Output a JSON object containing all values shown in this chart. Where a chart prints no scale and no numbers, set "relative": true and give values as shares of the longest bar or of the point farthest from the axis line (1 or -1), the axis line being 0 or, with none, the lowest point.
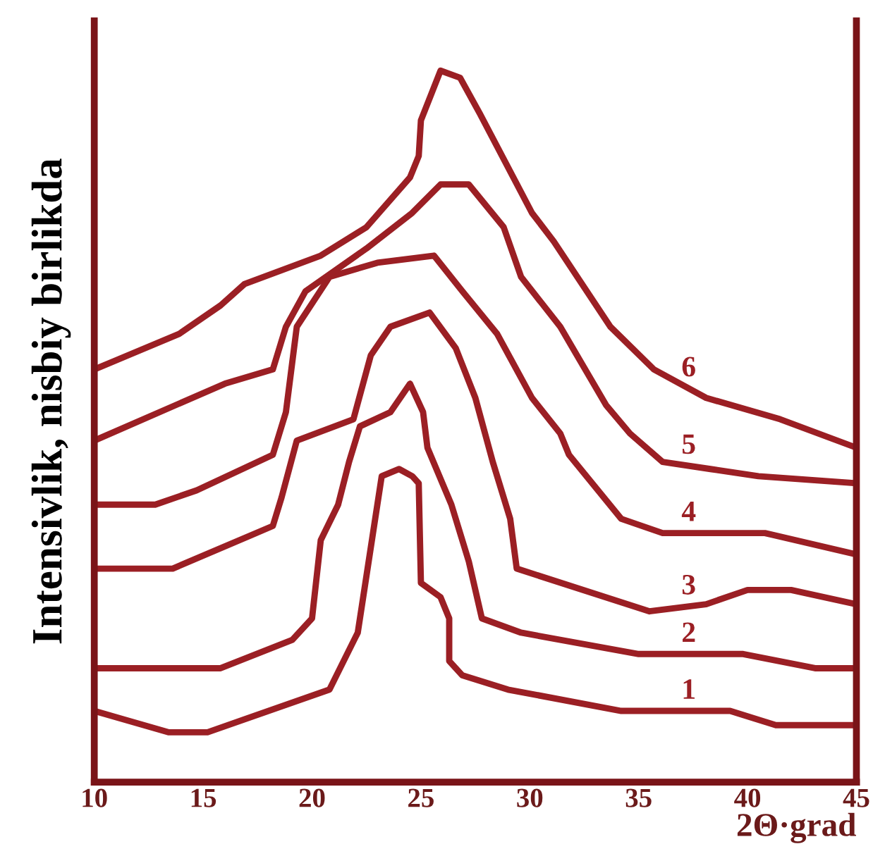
{
  "chart_data": {
    "type": "line",
    "relative": true,
    "xlabel": "2Θ·grad",
    "ylabel": "Intensivlik, nisbiy birlikda",
    "xlim": [
      10,
      45
    ],
    "xticks": [
      10,
      15,
      20,
      25,
      30,
      35,
      40,
      45
    ],
    "grid": false,
    "legend": false,
    "marker": "none",
    "line_style": "solid",
    "series": [
      {
        "name": "1",
        "color": "#9b1f24",
        "x": [
          10,
          13.4,
          15.2,
          20.8,
          22.1,
          22.6,
          23.2,
          24.0,
          24.6,
          24.9,
          25.0,
          25.9,
          26.3,
          26.3,
          26.9,
          29.0,
          34.2,
          39.2,
          41.3,
          45
        ],
        "values": [
          0.1,
          0.07,
          0.07,
          0.13,
          0.21,
          0.31,
          0.43,
          0.44,
          0.43,
          0.42,
          0.28,
          0.26,
          0.23,
          0.17,
          0.15,
          0.13,
          0.1,
          0.1,
          0.08,
          0.08
        ]
      },
      {
        "name": "2",
        "color": "#9b1f24",
        "x": [
          10,
          15.8,
          19.1,
          20.0,
          20.4,
          21.2,
          21.7,
          22.2,
          23.6,
          24.5,
          25.1,
          25.3,
          26.4,
          27.2,
          27.8,
          29.6,
          35.0,
          39.8,
          43.1,
          45
        ],
        "values": [
          0.16,
          0.16,
          0.2,
          0.23,
          0.34,
          0.39,
          0.45,
          0.5,
          0.52,
          0.56,
          0.52,
          0.47,
          0.39,
          0.31,
          0.23,
          0.21,
          0.18,
          0.18,
          0.16,
          0.16
        ]
      },
      {
        "name": "3",
        "color": "#9b1f24",
        "x": [
          10,
          13.6,
          18.2,
          18.6,
          19.3,
          21.9,
          22.7,
          23.6,
          25.4,
          26.6,
          27.5,
          28.3,
          29.1,
          29.4,
          35.5,
          38.1,
          40.0,
          42.0,
          45
        ],
        "values": [
          0.3,
          0.3,
          0.36,
          0.4,
          0.48,
          0.51,
          0.6,
          0.64,
          0.66,
          0.61,
          0.54,
          0.45,
          0.37,
          0.3,
          0.24,
          0.25,
          0.27,
          0.27,
          0.25
        ]
      },
      {
        "name": "4",
        "color": "#9b1f24",
        "x": [
          10,
          12.8,
          14.7,
          18.2,
          18.8,
          19.3,
          20.8,
          23.0,
          25.6,
          26.9,
          28.5,
          30.1,
          31.4,
          31.8,
          34.2,
          36.1,
          40.8,
          45
        ],
        "values": [
          0.39,
          0.39,
          0.41,
          0.46,
          0.52,
          0.64,
          0.71,
          0.73,
          0.74,
          0.69,
          0.63,
          0.54,
          0.49,
          0.46,
          0.37,
          0.35,
          0.35,
          0.32
        ]
      },
      {
        "name": "5",
        "color": "#9b1f24",
        "x": [
          10,
          16.0,
          18.2,
          18.8,
          19.7,
          22.5,
          24.6,
          25.9,
          27.2,
          28.8,
          29.6,
          31.4,
          33.5,
          34.6,
          36.1,
          38.3,
          40.5,
          45
        ],
        "values": [
          0.48,
          0.56,
          0.58,
          0.64,
          0.69,
          0.75,
          0.8,
          0.84,
          0.84,
          0.78,
          0.71,
          0.64,
          0.53,
          0.49,
          0.45,
          0.44,
          0.43,
          0.42
        ]
      },
      {
        "name": "6",
        "color": "#9b1f24",
        "x": [
          10,
          13.9,
          15.8,
          16.9,
          20.4,
          22.5,
          24.5,
          24.9,
          25.0,
          25.9,
          26.8,
          27.7,
          30.1,
          31.1,
          33.7,
          35.7,
          38.1,
          41.5,
          45
        ],
        "values": [
          0.58,
          0.63,
          0.67,
          0.7,
          0.74,
          0.78,
          0.85,
          0.88,
          0.93,
          1.0,
          0.99,
          0.94,
          0.8,
          0.76,
          0.64,
          0.58,
          0.54,
          0.51,
          0.47
        ]
      }
    ]
  }
}
